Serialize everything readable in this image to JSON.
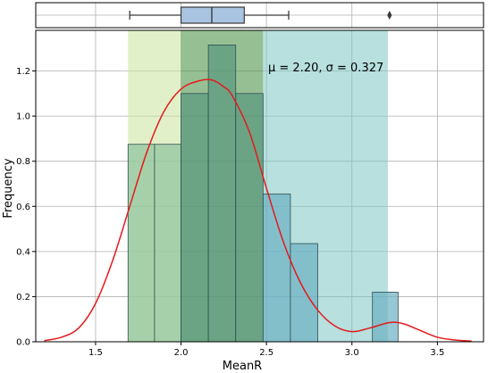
{
  "chart_data": {
    "type": "histogram",
    "xlabel": "MeanR",
    "ylabel": "Frequency",
    "annotation": "μ = 2.20,  σ = 0.327",
    "xlim": [
      1.15,
      3.77
    ],
    "ylim": [
      0,
      1.38
    ],
    "x_ticks": [
      1.5,
      2.0,
      2.5,
      3.0,
      3.5
    ],
    "x_tick_labels": [
      "1.5",
      "2.0",
      "2.5",
      "3.0",
      "3.5"
    ],
    "y_ticks": [
      0.0,
      0.2,
      0.4,
      0.6,
      0.8,
      1.0,
      1.2
    ],
    "y_tick_labels": [
      "0.0",
      "0.2",
      "0.4",
      "0.6",
      "0.8",
      "1.0",
      "1.2"
    ],
    "grid": true,
    "bin_edges": [
      1.69,
      1.845,
      2.0,
      2.16,
      2.32,
      2.48,
      2.64,
      2.8,
      2.96,
      3.12,
      3.27
    ],
    "frequencies": [
      0.875,
      0.875,
      1.1,
      1.315,
      1.1,
      0.655,
      0.435,
      0.0,
      0.0,
      0.22
    ],
    "bar_colors": [
      "#8fc49e",
      "#8fc49e",
      "#5a9a80",
      "#5a9a80",
      "#5a9a80",
      "#6fb0c4",
      "#6fb0c4",
      "#6fb0c4",
      "#6fb0c4",
      "#6fb0c4"
    ],
    "bands": [
      {
        "x0": 1.69,
        "x1": 2.0,
        "color": "#c8e39a",
        "opacity": 0.55
      },
      {
        "x0": 2.0,
        "x1": 2.48,
        "color": "#3f8a3a",
        "opacity": 0.55
      },
      {
        "x0": 2.48,
        "x1": 3.21,
        "color": "#7cc7c4",
        "opacity": 0.55
      }
    ],
    "kde": {
      "color": "#e41a1c",
      "x": [
        1.2,
        1.3,
        1.4,
        1.5,
        1.6,
        1.7,
        1.8,
        1.9,
        2.0,
        2.1,
        2.18,
        2.25,
        2.3,
        2.4,
        2.5,
        2.6,
        2.7,
        2.8,
        2.9,
        3.0,
        3.1,
        3.22,
        3.3,
        3.4,
        3.5,
        3.6,
        3.7
      ],
      "y": [
        0.005,
        0.02,
        0.06,
        0.17,
        0.36,
        0.6,
        0.84,
        1.02,
        1.12,
        1.155,
        1.16,
        1.13,
        1.09,
        0.93,
        0.68,
        0.44,
        0.26,
        0.14,
        0.07,
        0.045,
        0.06,
        0.085,
        0.08,
        0.05,
        0.02,
        0.008,
        0.003
      ]
    },
    "boxplot": {
      "whisker_low": 1.7,
      "q1": 2.0,
      "median": 2.18,
      "q3": 2.37,
      "whisker_high": 2.63,
      "outliers": [
        3.22
      ],
      "box_color": "#a9c4e0"
    }
  }
}
